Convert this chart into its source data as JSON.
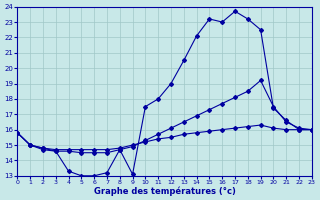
{
  "xlabel": "Graphe des températures (°c)",
  "background_color": "#c8e8e8",
  "grid_color": "#a0c8c8",
  "line_color": "#0000a0",
  "xlim": [
    0,
    23
  ],
  "ylim": [
    13,
    24
  ],
  "xticks": [
    0,
    1,
    2,
    3,
    4,
    5,
    6,
    7,
    8,
    9,
    10,
    11,
    12,
    13,
    14,
    15,
    16,
    17,
    18,
    19,
    20,
    21,
    22,
    23
  ],
  "yticks": [
    13,
    14,
    15,
    16,
    17,
    18,
    19,
    20,
    21,
    22,
    23,
    24
  ],
  "line1_x": [
    0,
    1,
    2,
    3,
    4,
    5,
    6,
    7,
    8,
    9,
    10,
    11,
    12,
    13,
    14,
    15,
    16,
    17,
    18,
    19,
    20,
    21,
    22,
    23
  ],
  "line1_y": [
    15.8,
    15.0,
    14.7,
    14.6,
    13.3,
    13.0,
    13.0,
    13.2,
    14.7,
    13.1,
    17.5,
    18.0,
    19.0,
    20.5,
    22.1,
    23.2,
    23.0,
    23.7,
    23.2,
    22.5,
    17.4,
    16.6,
    16.0,
    16.0
  ],
  "line2_x": [
    0,
    1,
    2,
    3,
    4,
    5,
    6,
    7,
    8,
    9,
    10,
    11,
    12,
    13,
    14,
    15,
    16,
    17,
    18,
    19,
    20,
    21,
    22,
    23
  ],
  "line2_y": [
    15.8,
    15.0,
    14.8,
    14.6,
    14.6,
    14.5,
    14.5,
    14.5,
    14.7,
    14.9,
    15.3,
    15.7,
    16.1,
    16.5,
    16.9,
    17.3,
    17.7,
    18.1,
    18.5,
    19.2,
    17.5,
    16.5,
    16.1,
    16.0
  ],
  "line3_x": [
    0,
    1,
    2,
    3,
    4,
    5,
    6,
    7,
    8,
    9,
    10,
    11,
    12,
    13,
    14,
    15,
    16,
    17,
    18,
    19,
    20,
    21,
    22,
    23
  ],
  "line3_y": [
    15.8,
    15.0,
    14.8,
    14.7,
    14.7,
    14.7,
    14.7,
    14.7,
    14.8,
    15.0,
    15.2,
    15.4,
    15.5,
    15.7,
    15.8,
    15.9,
    16.0,
    16.1,
    16.2,
    16.3,
    16.1,
    16.0,
    16.0,
    16.0
  ]
}
